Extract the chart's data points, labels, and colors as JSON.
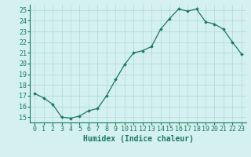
{
  "x": [
    0,
    1,
    2,
    3,
    4,
    5,
    6,
    7,
    8,
    9,
    10,
    11,
    12,
    13,
    14,
    15,
    16,
    17,
    18,
    19,
    20,
    21,
    22,
    23
  ],
  "y": [
    17.2,
    16.8,
    16.2,
    15.0,
    14.9,
    15.1,
    15.6,
    15.8,
    17.0,
    18.5,
    19.9,
    21.0,
    21.2,
    21.6,
    23.2,
    24.2,
    25.1,
    24.9,
    25.1,
    23.9,
    23.7,
    23.2,
    22.0,
    20.9
  ],
  "line_color": "#1a7a5e",
  "marker": "D",
  "marker_size": 1.8,
  "line_width": 0.9,
  "bg_color": "#d4f0f0",
  "grid_color": "#b0d8d8",
  "xlabel": "Humidex (Indice chaleur)",
  "xlabel_fontsize": 7,
  "tick_fontsize": 6,
  "ylim": [
    14.5,
    25.5
  ],
  "yticks": [
    15,
    16,
    17,
    18,
    19,
    20,
    21,
    22,
    23,
    24,
    25
  ],
  "xticks": [
    0,
    1,
    2,
    3,
    4,
    5,
    6,
    7,
    8,
    9,
    10,
    11,
    12,
    13,
    14,
    15,
    16,
    17,
    18,
    19,
    20,
    21,
    22,
    23
  ],
  "xlim": [
    -0.5,
    23.5
  ]
}
